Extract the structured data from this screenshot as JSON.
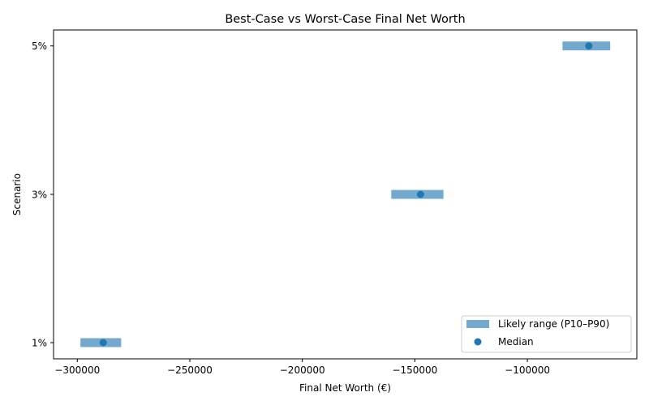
{
  "chart_data": {
    "type": "range-dot",
    "title": "Best-Case vs Worst-Case Final Net Worth",
    "xlabel": "Final Net Worth (€)",
    "ylabel": "Scenario",
    "xlim": [
      -310560,
      -51370
    ],
    "xticks": [
      -300000,
      -250000,
      -200000,
      -150000,
      -100000
    ],
    "xtick_labels": [
      "−300000",
      "−250000",
      "−200000",
      "−150000",
      "−100000"
    ],
    "categories": [
      "1%",
      "3%",
      "5%"
    ],
    "series": [
      {
        "name": "Likely range (P10–P90)",
        "type": "range",
        "color": "#74a9cf",
        "p10": [
          -298600,
          -160500,
          -84400
        ],
        "p90": [
          -280500,
          -137300,
          -63200
        ]
      },
      {
        "name": "Median",
        "type": "scatter",
        "color": "#1f77b4",
        "values": [
          -288500,
          -147500,
          -72700
        ]
      }
    ],
    "legend": {
      "position": "lower right",
      "entries": [
        "Likely range (P10–P90)",
        "Median"
      ]
    },
    "grid": false
  }
}
